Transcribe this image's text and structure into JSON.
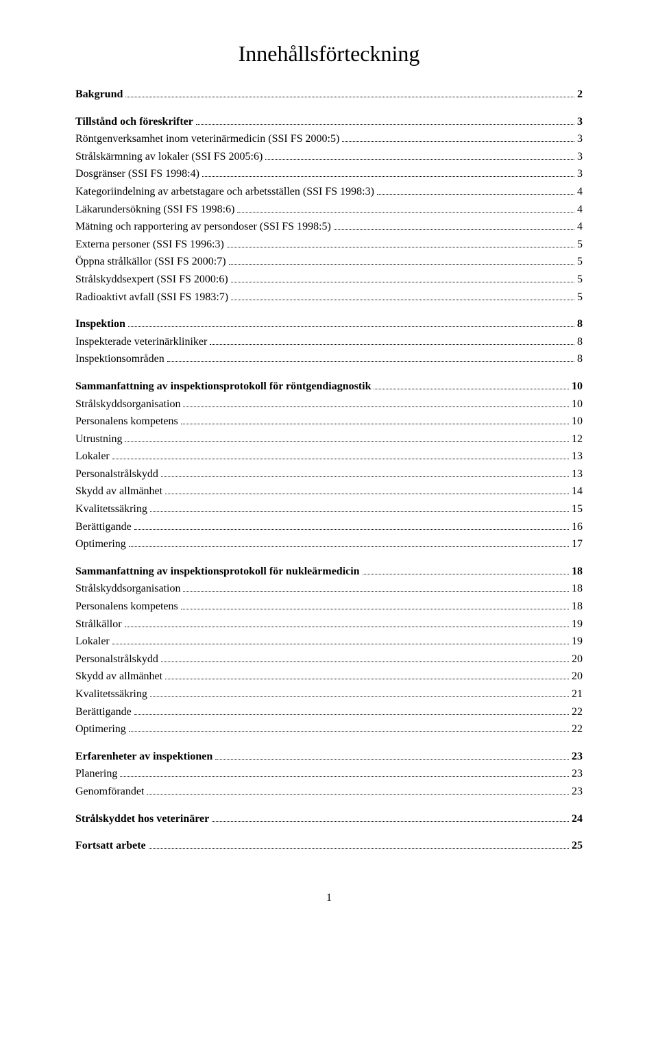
{
  "title": "Innehållsförteckning",
  "footer_page_number": "1",
  "toc": [
    {
      "label": "Bakgrund",
      "page": "2",
      "bold": true,
      "gap_before": false
    },
    {
      "label": "Tillstånd och föreskrifter",
      "page": "3",
      "bold": true,
      "gap_before": true
    },
    {
      "label": "Röntgenverksamhet inom veterinärmedicin (SSI FS 2000:5)",
      "page": "3",
      "bold": false,
      "gap_before": false
    },
    {
      "label": "Strålskärmning av lokaler (SSI FS 2005:6)",
      "page": "3",
      "bold": false,
      "gap_before": false
    },
    {
      "label": "Dosgränser (SSI FS 1998:4)",
      "page": "3",
      "bold": false,
      "gap_before": false
    },
    {
      "label": "Kategoriindelning av arbetstagare och arbetsställen (SSI FS 1998:3)",
      "page": "4",
      "bold": false,
      "gap_before": false
    },
    {
      "label": "Läkarundersökning (SSI FS 1998:6)",
      "page": "4",
      "bold": false,
      "gap_before": false
    },
    {
      "label": "Mätning och rapportering av persondoser (SSI FS 1998:5)",
      "page": "4",
      "bold": false,
      "gap_before": false
    },
    {
      "label": "Externa personer (SSI FS 1996:3)",
      "page": "5",
      "bold": false,
      "gap_before": false
    },
    {
      "label": "Öppna strålkällor (SSI FS 2000:7)",
      "page": "5",
      "bold": false,
      "gap_before": false
    },
    {
      "label": "Strålskyddsexpert (SSI FS 2000:6)",
      "page": "5",
      "bold": false,
      "gap_before": false
    },
    {
      "label": "Radioaktivt avfall (SSI FS 1983:7)",
      "page": "5",
      "bold": false,
      "gap_before": false
    },
    {
      "label": "Inspektion",
      "page": "8",
      "bold": true,
      "gap_before": true
    },
    {
      "label": "Inspekterade veterinärkliniker",
      "page": "8",
      "bold": false,
      "gap_before": false
    },
    {
      "label": "Inspektionsområden",
      "page": "8",
      "bold": false,
      "gap_before": false
    },
    {
      "label": "Sammanfattning av inspektionsprotokoll för röntgendiagnostik",
      "page": "10",
      "bold": true,
      "gap_before": true
    },
    {
      "label": "Strålskyddsorganisation",
      "page": "10",
      "bold": false,
      "gap_before": false
    },
    {
      "label": "Personalens kompetens",
      "page": "10",
      "bold": false,
      "gap_before": false
    },
    {
      "label": "Utrustning",
      "page": "12",
      "bold": false,
      "gap_before": false
    },
    {
      "label": "Lokaler",
      "page": "13",
      "bold": false,
      "gap_before": false
    },
    {
      "label": "Personalstrålskydd",
      "page": "13",
      "bold": false,
      "gap_before": false
    },
    {
      "label": "Skydd av allmänhet",
      "page": "14",
      "bold": false,
      "gap_before": false
    },
    {
      "label": "Kvalitetssäkring",
      "page": "15",
      "bold": false,
      "gap_before": false
    },
    {
      "label": "Berättigande",
      "page": "16",
      "bold": false,
      "gap_before": false
    },
    {
      "label": "Optimering",
      "page": "17",
      "bold": false,
      "gap_before": false
    },
    {
      "label": "Sammanfattning av inspektionsprotokoll för nukleärmedicin",
      "page": "18",
      "bold": true,
      "gap_before": true
    },
    {
      "label": "Strålskyddsorganisation",
      "page": "18",
      "bold": false,
      "gap_before": false
    },
    {
      "label": "Personalens kompetens",
      "page": "18",
      "bold": false,
      "gap_before": false
    },
    {
      "label": "Strålkällor",
      "page": "19",
      "bold": false,
      "gap_before": false
    },
    {
      "label": "Lokaler",
      "page": "19",
      "bold": false,
      "gap_before": false
    },
    {
      "label": "Personalstrålskydd",
      "page": "20",
      "bold": false,
      "gap_before": false
    },
    {
      "label": "Skydd av allmänhet",
      "page": "20",
      "bold": false,
      "gap_before": false
    },
    {
      "label": "Kvalitetssäkring",
      "page": "21",
      "bold": false,
      "gap_before": false
    },
    {
      "label": "Berättigande",
      "page": "22",
      "bold": false,
      "gap_before": false
    },
    {
      "label": "Optimering",
      "page": "22",
      "bold": false,
      "gap_before": false
    },
    {
      "label": "Erfarenheter av inspektionen",
      "page": "23",
      "bold": true,
      "gap_before": true
    },
    {
      "label": "Planering",
      "page": "23",
      "bold": false,
      "gap_before": false
    },
    {
      "label": "Genomförandet",
      "page": "23",
      "bold": false,
      "gap_before": false
    },
    {
      "label": "Strålskyddet hos veterinärer",
      "page": "24",
      "bold": true,
      "gap_before": true
    },
    {
      "label": "Fortsatt arbete",
      "page": "25",
      "bold": true,
      "gap_before": true
    }
  ]
}
